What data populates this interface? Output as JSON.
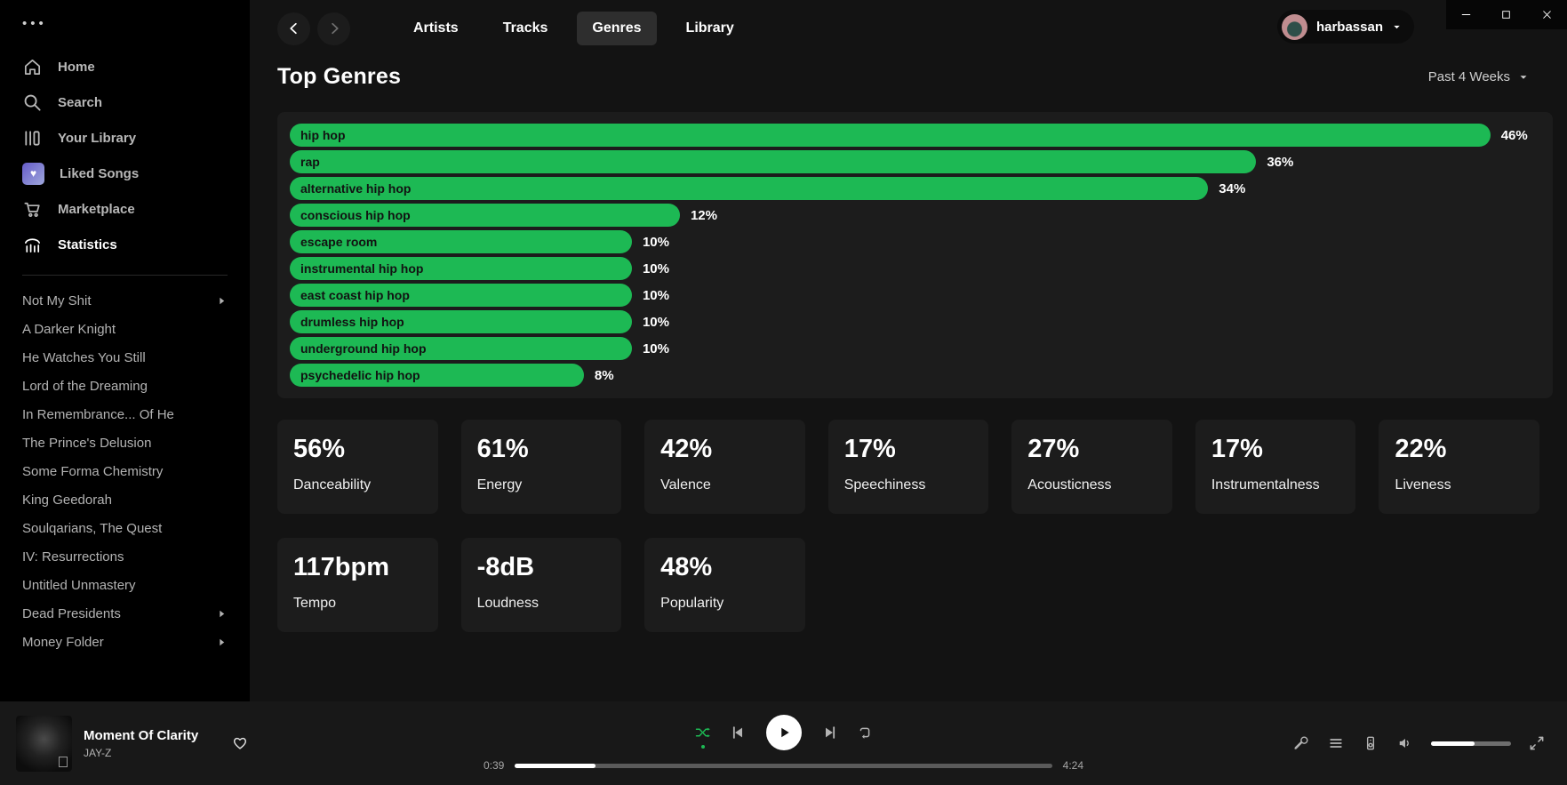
{
  "colors": {
    "accent_green": "#1db954",
    "page_bg": "#131313",
    "panel_bg": "#1c1c1c",
    "sidebar_bg": "#000000",
    "player_bg": "#181818"
  },
  "window": {
    "controls": [
      {
        "icon": "minimize-icon"
      },
      {
        "icon": "maximize-icon"
      },
      {
        "icon": "close-icon"
      }
    ]
  },
  "sidebar": {
    "menu_dots": "•••",
    "nav": [
      {
        "label": "Home",
        "icon": "home-icon",
        "active": false
      },
      {
        "label": "Search",
        "icon": "search-icon",
        "active": false
      },
      {
        "label": "Your Library",
        "icon": "library-icon",
        "active": false
      },
      {
        "label": "Liked Songs",
        "icon": "liked-songs-icon",
        "active": false
      },
      {
        "label": "Marketplace",
        "icon": "cart-icon",
        "active": false
      },
      {
        "label": "Statistics",
        "icon": "stats-icon",
        "active": true
      }
    ],
    "playlists": [
      {
        "label": "Not My Shit",
        "folder": true
      },
      {
        "label": "A Darker Knight",
        "folder": false
      },
      {
        "label": "He Watches You Still",
        "folder": false
      },
      {
        "label": "Lord of the Dreaming",
        "folder": false
      },
      {
        "label": "In Remembrance... Of He",
        "folder": false
      },
      {
        "label": "The Prince's Delusion",
        "folder": false
      },
      {
        "label": "Some Forma Chemistry",
        "folder": false
      },
      {
        "label": "King Geedorah",
        "folder": false
      },
      {
        "label": "Soulqarians, The Quest",
        "folder": false
      },
      {
        "label": "IV: Resurrections",
        "folder": false
      },
      {
        "label": "Untitled Unmastery",
        "folder": false
      },
      {
        "label": "Dead Presidents",
        "folder": true
      },
      {
        "label": "Money Folder",
        "folder": true
      }
    ]
  },
  "topbar": {
    "tabs": [
      {
        "label": "Artists",
        "active": false
      },
      {
        "label": "Tracks",
        "active": false
      },
      {
        "label": "Genres",
        "active": true
      },
      {
        "label": "Library",
        "active": false
      }
    ],
    "user": {
      "name": "harbassan"
    }
  },
  "page": {
    "title": "Top Genres",
    "period": "Past 4 Weeks"
  },
  "chart_data": {
    "type": "bar",
    "orientation": "horizontal",
    "title": "Top Genres",
    "period": "Past 4 Weeks",
    "unit": "%",
    "bar_color": "#1db954",
    "categories": [
      "hip hop",
      "rap",
      "alternative hip hop",
      "conscious hip hop",
      "escape room",
      "instrumental hip hop",
      "east coast hip hop",
      "drumless hip hop",
      "underground hip hop",
      "psychedelic hip hop"
    ],
    "values": [
      46,
      36,
      34,
      12,
      10,
      10,
      10,
      10,
      10,
      8
    ]
  },
  "stats": [
    {
      "value": "56%",
      "label": "Danceability"
    },
    {
      "value": "61%",
      "label": "Energy"
    },
    {
      "value": "42%",
      "label": "Valence"
    },
    {
      "value": "17%",
      "label": "Speechiness"
    },
    {
      "value": "27%",
      "label": "Acousticness"
    },
    {
      "value": "17%",
      "label": "Instrumentalness"
    },
    {
      "value": "22%",
      "label": "Liveness"
    },
    {
      "value": "117bpm",
      "label": "Tempo"
    },
    {
      "value": "-8dB",
      "label": "Loudness"
    },
    {
      "value": "48%",
      "label": "Popularity"
    }
  ],
  "player": {
    "track": "Moment Of Clarity",
    "artist": "JAY-Z",
    "elapsed": "0:39",
    "duration": "4:24",
    "progress_pct": 15,
    "volume_pct": 54,
    "shuffle_active": true,
    "controls": [
      "shuffle-icon",
      "previous-icon",
      "play-icon",
      "next-icon",
      "repeat-icon"
    ],
    "right_icons": [
      "microphone-icon",
      "queue-icon",
      "connect-device-icon",
      "volume-icon",
      "volume-slider",
      "fullscreen-icon"
    ]
  }
}
